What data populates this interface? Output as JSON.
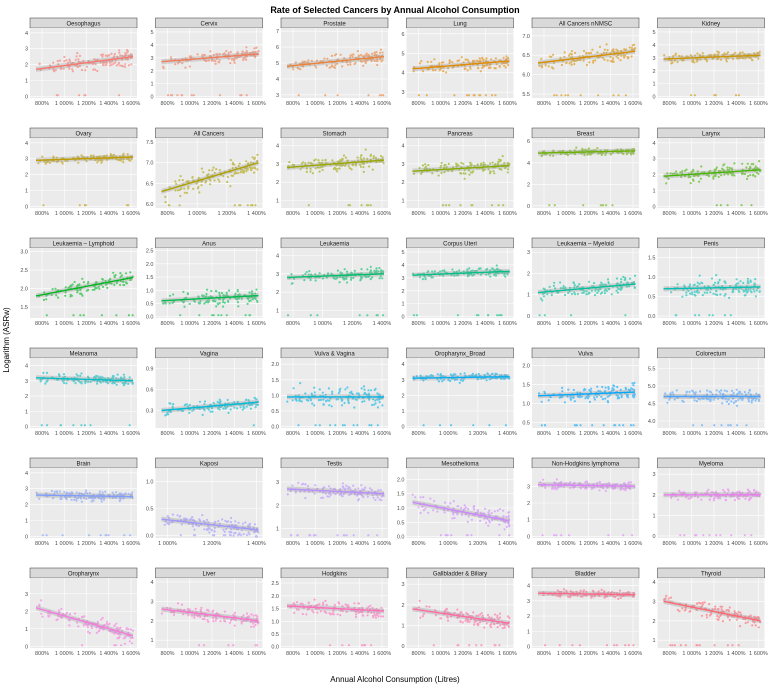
{
  "chart_data": {
    "type": "scatter",
    "title": "Rate of Selected Cancers by Annual Alcohol Consumption",
    "xlabel": "Annual Alcohol Consumption (Litres)",
    "ylabel": "Logarithm (ASRw)",
    "trend": "linear fit with confidence band",
    "panels": [
      {
        "name": "Oesophagus",
        "color": "#F8766D",
        "xticks": [
          "800%",
          "1 000%",
          "1 200%",
          "1 400%",
          "1 600%"
        ],
        "yticks": [
          "0",
          "1",
          "2",
          "3",
          "4"
        ],
        "ylim": [
          -0.1,
          4.3
        ],
        "fit": [
          1.7,
          2.5
        ],
        "base": 2.0,
        "spread": 0.9
      },
      {
        "name": "Cervix",
        "color": "#F37B59",
        "xticks": [
          "800%",
          "1 000%",
          "1 200%",
          "1 400%",
          "1 600%"
        ],
        "yticks": [
          "0",
          "1",
          "2",
          "3",
          "4",
          "5"
        ],
        "ylim": [
          -0.1,
          5.3
        ],
        "fit": [
          2.7,
          3.3
        ],
        "base": 3.0,
        "spread": 0.8
      },
      {
        "name": "Prostate",
        "color": "#EC8239",
        "xticks": [
          "800%",
          "1 000%",
          "1 200%",
          "1 400%",
          "1 600%"
        ],
        "yticks": [
          "3",
          "4",
          "5",
          "6",
          "7"
        ],
        "ylim": [
          2.8,
          7.2
        ],
        "fit": [
          4.8,
          5.4
        ],
        "base": 5.0,
        "spread": 0.7
      },
      {
        "name": "Lung",
        "color": "#E38900",
        "xticks": [
          "800%",
          "1 000%",
          "1 200%",
          "1 400%",
          "1 600%"
        ],
        "yticks": [
          "3",
          "4",
          "5",
          "6"
        ],
        "ylim": [
          2.7,
          6.3
        ],
        "fit": [
          4.2,
          4.6
        ],
        "base": 4.3,
        "spread": 0.6
      },
      {
        "name": "All Cancers nNMSC",
        "color": "#D89000",
        "xticks": [
          "800%",
          "1 000%",
          "1 200%",
          "1 400%",
          "1 600%"
        ],
        "yticks": [
          "5.5",
          "6.0",
          "6.5",
          "7.0"
        ],
        "ylim": [
          5.4,
          7.2
        ],
        "fit": [
          6.3,
          6.6
        ],
        "base": 6.4,
        "spread": 0.3
      },
      {
        "name": "Kidney",
        "color": "#CC9600",
        "xticks": [
          "800%",
          "1 000%",
          "1 200%",
          "1 400%",
          "1 600%"
        ],
        "yticks": [
          "0",
          "1",
          "2",
          "3",
          "4",
          "5"
        ],
        "ylim": [
          -0.1,
          5.3
        ],
        "fit": [
          2.9,
          3.2
        ],
        "base": 3.0,
        "spread": 0.6
      },
      {
        "name": "Ovary",
        "color": "#BE9C00",
        "xticks": [
          "800%",
          "1 000%",
          "1 200%",
          "1 400%",
          "1 600%"
        ],
        "yticks": [
          "0",
          "1",
          "2",
          "3",
          "4"
        ],
        "ylim": [
          -0.1,
          4.3
        ],
        "fit": [
          2.9,
          3.1
        ],
        "base": 3.0,
        "spread": 0.4
      },
      {
        "name": "All Cancers",
        "color": "#AEA200",
        "xticks": [
          "800%",
          "1 000%",
          "1 200%",
          "1 400%"
        ],
        "yticks": [
          "6.0",
          "6.5",
          "7.0",
          "7.5"
        ],
        "ylim": [
          5.9,
          7.6
        ],
        "fit": [
          6.3,
          7.0
        ],
        "base": 6.6,
        "spread": 0.4
      },
      {
        "name": "Stomach",
        "color": "#9CA700",
        "xticks": [
          "800%",
          "1 000%",
          "1 200%",
          "1 400%",
          "1 600%"
        ],
        "yticks": [
          "1",
          "2",
          "3",
          "4"
        ],
        "ylim": [
          0.6,
          4.4
        ],
        "fit": [
          2.8,
          3.2
        ],
        "base": 3.0,
        "spread": 0.7
      },
      {
        "name": "Pancreas",
        "color": "#86AC00",
        "xticks": [
          "800%",
          "1 000%",
          "1 200%",
          "1 400%",
          "1 600%"
        ],
        "yticks": [
          "1",
          "2",
          "3",
          "4"
        ],
        "ylim": [
          0.6,
          4.4
        ],
        "fit": [
          2.6,
          2.9
        ],
        "base": 2.8,
        "spread": 0.6
      },
      {
        "name": "Breast",
        "color": "#6BB100",
        "xticks": [
          "800%",
          "1 000%",
          "1 200%",
          "1 400%",
          "1 600%"
        ],
        "yticks": [
          "0",
          "2",
          "4",
          "6"
        ],
        "ylim": [
          -0.2,
          6.3
        ],
        "fit": [
          4.9,
          5.1
        ],
        "base": 5.0,
        "spread": 0.5
      },
      {
        "name": "Larynx",
        "color": "#45B500",
        "xticks": [
          "800%",
          "1 000%",
          "1 200%",
          "1 400%",
          "1 600%"
        ],
        "yticks": [
          "0",
          "1",
          "2",
          "3",
          "4"
        ],
        "ylim": [
          -0.1,
          4.3
        ],
        "fit": [
          1.9,
          2.3
        ],
        "base": 2.1,
        "spread": 0.8
      },
      {
        "name": "Leukaemia – Lymphoid",
        "color": "#00B81F",
        "xticks": [
          "800%",
          "1 000%",
          "1 200%",
          "1 400%",
          "1 600%"
        ],
        "yticks": [
          "1.5",
          "2.0",
          "2.5",
          "3.0"
        ],
        "ylim": [
          1.2,
          3.1
        ],
        "fit": [
          1.8,
          2.3
        ],
        "base": 2.05,
        "spread": 0.3
      },
      {
        "name": "Anus",
        "color": "#00BB4E",
        "xticks": [
          "800%",
          "1 000%",
          "1 200%",
          "1 400%",
          "1 600%"
        ],
        "yticks": [
          "0.0",
          "0.5",
          "1.0",
          "1.5",
          "2.0",
          "2.5"
        ],
        "ylim": [
          -0.05,
          2.6
        ],
        "fit": [
          0.6,
          0.8
        ],
        "base": 0.7,
        "spread": 0.5
      },
      {
        "name": "Leukaemia",
        "color": "#00BE6C",
        "xticks": [
          "800%",
          "1 000%",
          "1 200%",
          "1 400%"
        ],
        "yticks": [
          "1",
          "2",
          "3",
          "4"
        ],
        "ylim": [
          0.6,
          4.4
        ],
        "fit": [
          2.8,
          3.0
        ],
        "base": 2.9,
        "spread": 0.5
      },
      {
        "name": "Corpus Uteri",
        "color": "#00C086",
        "xticks": [
          "800%",
          "1 000%",
          "1 200%",
          "1 400%",
          "1 600%"
        ],
        "yticks": [
          "0",
          "1",
          "2",
          "3",
          "4",
          "5"
        ],
        "ylim": [
          -0.1,
          5.3
        ],
        "fit": [
          3.2,
          3.5
        ],
        "base": 3.3,
        "spread": 0.6
      },
      {
        "name": "Leukaemia – Myeloid",
        "color": "#00C19E",
        "xticks": [
          "800%",
          "1 000%",
          "1 200%",
          "1 400%",
          "1 600%"
        ],
        "yticks": [
          "0",
          "1",
          "2",
          "3"
        ],
        "ylim": [
          -0.1,
          3.2
        ],
        "fit": [
          1.1,
          1.5
        ],
        "base": 1.3,
        "spread": 0.6
      },
      {
        "name": "Penis",
        "color": "#00C0B5",
        "xticks": [
          "800%",
          "1 000%",
          "1 200%",
          "1 400%",
          "1 600%"
        ],
        "yticks": [
          "0.0",
          "0.5",
          "1.0",
          "1.5"
        ],
        "ylim": [
          -0.05,
          1.75
        ],
        "fit": [
          0.7,
          0.75
        ],
        "base": 0.72,
        "spread": 0.4
      },
      {
        "name": "Melanoma",
        "color": "#00BDC4",
        "xticks": [
          "800%",
          "1 000%",
          "1 200%",
          "1 400%",
          "1 600%"
        ],
        "yticks": [
          "0",
          "1",
          "2",
          "3",
          "4"
        ],
        "ylim": [
          -0.1,
          4.5
        ],
        "fit": [
          3.2,
          3.0
        ],
        "base": 3.1,
        "spread": 0.6
      },
      {
        "name": "Vagina",
        "color": "#00BAD6",
        "xticks": [
          "800%",
          "1 000%",
          "1 200%",
          "1 400%",
          "1 600%"
        ],
        "yticks": [
          "0.3",
          "0.6",
          "0.9"
        ],
        "ylim": [
          0.05,
          1.05
        ],
        "fit": [
          0.3,
          0.42
        ],
        "base": 0.35,
        "spread": 0.15
      },
      {
        "name": "Vulva & Vagina",
        "color": "#00B5E6",
        "xticks": [
          "800%",
          "1 000%",
          "1 200%",
          "1 400%",
          "1 600%"
        ],
        "yticks": [
          "0.0",
          "0.5",
          "1.0",
          "1.5",
          "2.0"
        ],
        "ylim": [
          -0.05,
          2.2
        ],
        "fit": [
          0.95,
          0.95
        ],
        "base": 0.95,
        "spread": 0.5
      },
      {
        "name": "Oropharynx_Broad",
        "color": "#00AFF3",
        "xticks": [
          "800%",
          "1 000%",
          "1 200%",
          "1 400%"
        ],
        "yticks": [
          "0",
          "1",
          "2",
          "3",
          "4"
        ],
        "ylim": [
          -0.1,
          4.4
        ],
        "fit": [
          3.1,
          3.2
        ],
        "base": 3.15,
        "spread": 0.4
      },
      {
        "name": "Vulva",
        "color": "#00A7FF",
        "xticks": [
          "800%",
          "1 000%",
          "1 200%",
          "1 400%",
          "1 600%"
        ],
        "yticks": [
          "0.5",
          "1.0",
          "1.5",
          "2.0"
        ],
        "ylim": [
          0.35,
          2.2
        ],
        "fit": [
          1.2,
          1.3
        ],
        "base": 1.25,
        "spread": 0.35
      },
      {
        "name": "Colorectum",
        "color": "#4EA2FF",
        "xticks": [
          "800%",
          "1 000%",
          "1 200%",
          "1 400%",
          "1 600%"
        ],
        "yticks": [
          "4.0",
          "4.5",
          "5.0",
          "5.5"
        ],
        "ylim": [
          3.8,
          5.8
        ],
        "fit": [
          4.7,
          4.7
        ],
        "base": 4.75,
        "spread": 0.35
      },
      {
        "name": "Brain",
        "color": "#7E9DFF",
        "xticks": [
          "800%",
          "1 000%",
          "1 200%",
          "1 400%",
          "1 600%"
        ],
        "yticks": [
          "0",
          "1",
          "2",
          "3",
          "4"
        ],
        "ylim": [
          -0.1,
          4.3
        ],
        "fit": [
          2.6,
          2.5
        ],
        "base": 2.55,
        "spread": 0.5
      },
      {
        "name": "Kaposi",
        "color": "#9E96FF",
        "xticks": [
          "1 000%",
          "1 200%",
          "1 400%"
        ],
        "yticks": [
          "0.0",
          "0.5",
          "1.0"
        ],
        "ylim": [
          -0.05,
          1.25
        ],
        "fit": [
          0.3,
          0.1
        ],
        "base": 0.2,
        "spread": 0.25
      },
      {
        "name": "Testis",
        "color": "#B88FFF",
        "xticks": [
          "800%",
          "1 000%",
          "1 200%",
          "1 400%",
          "1 600%"
        ],
        "yticks": [
          "1",
          "2",
          "3"
        ],
        "ylim": [
          0.6,
          3.6
        ],
        "fit": [
          2.7,
          2.5
        ],
        "base": 2.6,
        "spread": 0.5
      },
      {
        "name": "Mesothelioma",
        "color": "#CD88FF",
        "xticks": [
          "800%",
          "1 000%",
          "1 200%",
          "1 400%"
        ],
        "yticks": [
          "0.0",
          "0.5",
          "1.0",
          "1.5",
          "2.0"
        ],
        "ylim": [
          -0.05,
          2.4
        ],
        "fit": [
          1.2,
          0.55
        ],
        "base": 0.9,
        "spread": 0.5
      },
      {
        "name": "Non-Hodgkins lymphoma",
        "color": "#DE81FF",
        "xticks": [
          "800%",
          "1 000%",
          "1 200%",
          "1 400%",
          "1 600%"
        ],
        "yticks": [
          "0",
          "1",
          "2",
          "3"
        ],
        "ylim": [
          -0.1,
          4.1
        ],
        "fit": [
          3.1,
          3.0
        ],
        "base": 3.05,
        "spread": 0.4
      },
      {
        "name": "Myeloma",
        "color": "#EB7BF1",
        "xticks": [
          "800%",
          "1 000%",
          "1 200%",
          "1 400%",
          "1 600%"
        ],
        "yticks": [
          "0",
          "1",
          "2",
          "3"
        ],
        "ylim": [
          -0.1,
          3.3
        ],
        "fit": [
          2.0,
          2.0
        ],
        "base": 2.0,
        "spread": 0.4
      },
      {
        "name": "Oropharynx",
        "color": "#F777E2",
        "xticks": [
          "800%",
          "1 000%",
          "1 200%",
          "1 400%",
          "1 600%"
        ],
        "yticks": [
          "0",
          "1",
          "2",
          "3"
        ],
        "ylim": [
          -0.1,
          3.9
        ],
        "fit": [
          2.2,
          0.6
        ],
        "base": 1.4,
        "spread": 0.8
      },
      {
        "name": "Liver",
        "color": "#FD72D0",
        "xticks": [
          "800%",
          "1 000%",
          "1 200%",
          "1 400%",
          "1 600%"
        ],
        "yticks": [
          "1",
          "2",
          "3",
          "4"
        ],
        "ylim": [
          0.6,
          4.2
        ],
        "fit": [
          2.6,
          2.0
        ],
        "base": 2.3,
        "spread": 0.6
      },
      {
        "name": "Hodgkins",
        "color": "#FF6EBB",
        "xticks": [
          "800%",
          "1 000%",
          "1 200%",
          "1 400%",
          "1 600%"
        ],
        "yticks": [
          "0.0",
          "0.5",
          "1.0",
          "1.5",
          "2.0",
          "2.5"
        ],
        "ylim": [
          -0.05,
          2.7
        ],
        "fit": [
          1.6,
          1.4
        ],
        "base": 1.5,
        "spread": 0.4
      },
      {
        "name": "Gallbladder & Biliary",
        "color": "#FF6AA3",
        "xticks": [
          "800%",
          "1 000%",
          "1 200%",
          "1 400%",
          "1 600%"
        ],
        "yticks": [
          "0",
          "1",
          "2",
          "3"
        ],
        "ylim": [
          -0.1,
          3.3
        ],
        "fit": [
          1.8,
          1.1
        ],
        "base": 1.45,
        "spread": 0.6
      },
      {
        "name": "Bladder",
        "color": "#FF678A",
        "xticks": [
          "800%",
          "1 000%",
          "1 200%",
          "1 400%",
          "1 600%"
        ],
        "yticks": [
          "0",
          "1",
          "2",
          "3",
          "4"
        ],
        "ylim": [
          -0.1,
          4.5
        ],
        "fit": [
          3.5,
          3.4
        ],
        "base": 3.45,
        "spread": 0.4
      },
      {
        "name": "Thyroid",
        "color": "#FF6671",
        "xticks": [
          "800%",
          "1 000%",
          "1 200%",
          "1 400%",
          "1 600%"
        ],
        "yticks": [
          "1",
          "2",
          "3",
          "4"
        ],
        "ylim": [
          0.6,
          4.2
        ],
        "fit": [
          3.0,
          2.0
        ],
        "base": 2.5,
        "spread": 0.7
      }
    ]
  }
}
